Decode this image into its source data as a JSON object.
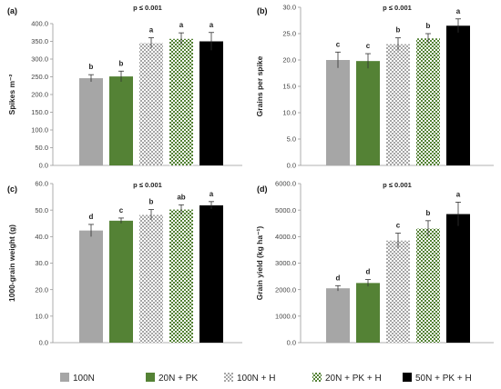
{
  "legend": [
    {
      "label": "100N",
      "color": "#a6a6a6",
      "pattern": "solid"
    },
    {
      "label": "20N + PK",
      "color": "#548235",
      "pattern": "solid"
    },
    {
      "label": "100N + H",
      "color": "#a6a6a6",
      "pattern": "checker"
    },
    {
      "label": "20N + PK + H",
      "color": "#548235",
      "pattern": "checker"
    },
    {
      "label": "50N + PK + H",
      "color": "#000000",
      "pattern": "solid"
    }
  ],
  "chart_data": [
    {
      "type": "bar",
      "panel": "(a)",
      "title": "p ≤ 0.001",
      "ylabel": "Spikes m⁻²",
      "ylim": [
        0,
        400
      ],
      "ytick_step": 50,
      "ytick_labels": [
        "0.0",
        "50.0",
        "100.0",
        "150.0",
        "200.0",
        "250.0",
        "300.0",
        "350.0",
        "400.0"
      ],
      "categories": [
        "100N",
        "20N + PK",
        "100N + H",
        "20N + PK + H",
        "50N + PK + H"
      ],
      "values": [
        246,
        251,
        345,
        357,
        350
      ],
      "errors": [
        10,
        15,
        15,
        17,
        25
      ],
      "letters": [
        "b",
        "b",
        "a",
        "a",
        "a"
      ]
    },
    {
      "type": "bar",
      "panel": "(b)",
      "title": "p ≤ 0.001",
      "ylabel": "Grains per spike",
      "ylim": [
        0,
        30
      ],
      "ytick_step": 5,
      "ytick_labels": [
        "0.0",
        "5.0",
        "10.0",
        "15.0",
        "20.0",
        "25.0",
        "30.0"
      ],
      "categories": [
        "100N",
        "20N + PK",
        "100N + H",
        "20N + PK + H",
        "50N + PK + H"
      ],
      "values": [
        20.0,
        19.8,
        23.0,
        24.1,
        26.5
      ],
      "errors": [
        1.5,
        1.4,
        1.2,
        0.9,
        1.3
      ],
      "letters": [
        "c",
        "c",
        "b",
        "b",
        "a"
      ]
    },
    {
      "type": "bar",
      "panel": "(c)",
      "title": "p ≤ 0.001",
      "ylabel": "1000-grain weight (g)",
      "ylim": [
        0,
        60
      ],
      "ytick_step": 10,
      "ytick_labels": [
        "0.0",
        "10.0",
        "20.0",
        "30.0",
        "40.0",
        "50.0",
        "60.0"
      ],
      "categories": [
        "100N",
        "20N + PK",
        "100N + H",
        "20N + PK + H",
        "50N + PK + H"
      ],
      "values": [
        42.3,
        46.0,
        48.2,
        50.2,
        51.8
      ],
      "errors": [
        2.3,
        1.0,
        2.0,
        1.8,
        1.4
      ],
      "letters": [
        "d",
        "c",
        "b",
        "ab",
        "a"
      ]
    },
    {
      "type": "bar",
      "panel": "(d)",
      "title": "p ≤ 0.001",
      "ylabel": "Grain yield (kg ha⁻¹)",
      "ylim": [
        0,
        6000
      ],
      "ytick_step": 1000,
      "ytick_labels": [
        "0.0",
        "1000.0",
        "2000.0",
        "3000.0",
        "4000.0",
        "5000.0",
        "6000.0"
      ],
      "categories": [
        "100N",
        "20N + PK",
        "100N + H",
        "20N + PK + H",
        "50N + PK + H"
      ],
      "values": [
        2050,
        2250,
        3850,
        4300,
        4850
      ],
      "errors": [
        100,
        130,
        280,
        300,
        450
      ],
      "letters": [
        "d",
        "d",
        "c",
        "b",
        "a"
      ]
    }
  ]
}
